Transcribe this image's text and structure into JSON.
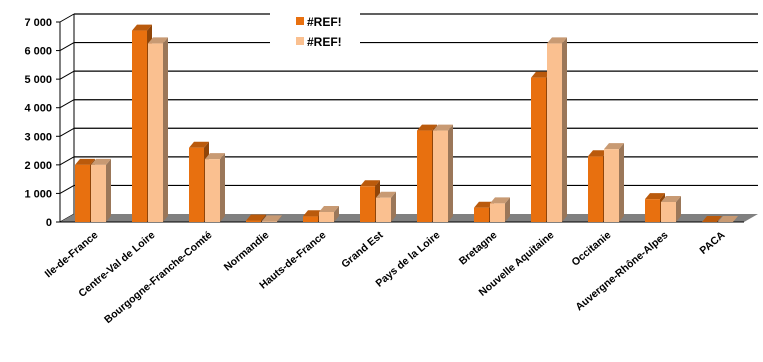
{
  "chart_data": {
    "type": "bar",
    "categories": [
      "Ile-de-France",
      "Centre-Val de Loire",
      "Bourgogne-Franche-Comté",
      "Normandie",
      "Hauts-de-France",
      "Grand Est",
      "Pays de la Loire",
      "Bretagne",
      "Nouvelle Aquitaine",
      "Occitanie",
      "Auvergne-Rhône-Alpes",
      "PACA"
    ],
    "series": [
      {
        "name": "#REF!",
        "color": "#E8700F",
        "values": [
          2000,
          6700,
          2600,
          50,
          200,
          1250,
          3200,
          500,
          5050,
          2300,
          800,
          0
        ]
      },
      {
        "name": "#REF!",
        "color": "#FAC090",
        "values": [
          2000,
          6250,
          2200,
          20,
          350,
          850,
          3200,
          650,
          6250,
          2550,
          700,
          0
        ]
      }
    ],
    "ylim": [
      0,
      7000
    ],
    "yticks": [
      "0",
      "1 000",
      "2 000",
      "3 000",
      "4 000",
      "5 000",
      "6 000",
      "7 000"
    ],
    "grid": true,
    "legend_position": "top-center",
    "style": "3d-column"
  }
}
